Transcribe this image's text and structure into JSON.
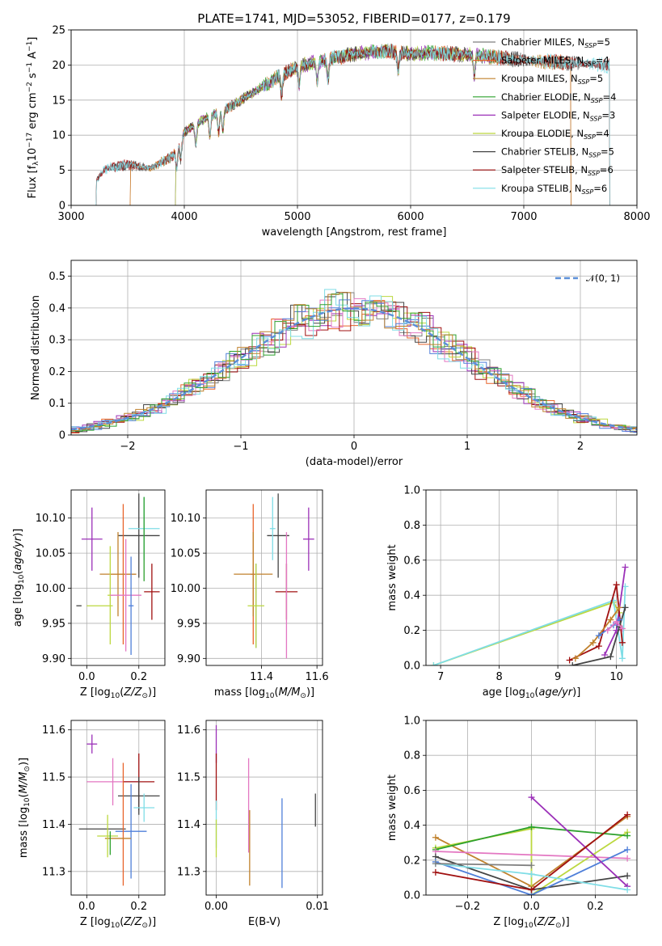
{
  "figure": {
    "title": "PLATE=1741, MJD=53052, FIBERID=0177, z=0.179"
  },
  "colors": {
    "Chabrier MILES": "#7f7f7f",
    "Salpeter MILES": "#e8632a",
    "Kroupa MILES": "#c0812c",
    "Chabrier ELODIE": "#2ca02c",
    "Salpeter ELODIE": "#9b30b8",
    "Kroupa ELODIE": "#bcd83f",
    "Chabrier STELIB": "#444444",
    "Salpeter STELIB": "#a01010",
    "Kroupa STELIB": "#7fdde6",
    "extra_pink": "#e377c2",
    "extra_blue": "#4f7fd9",
    "gauss": "#5b8fd8"
  },
  "chart_data": [
    {
      "id": "spectrum",
      "type": "line",
      "xlabel": "wavelength [Angstrom, rest frame]",
      "ylabel": "Flux [f_λ 10^-17 erg cm^-2 s^-1 A^-1]",
      "xlim": [
        3000,
        8000
      ],
      "ylim": [
        0,
        25
      ],
      "xticks": [
        3000,
        4000,
        5000,
        6000,
        7000,
        8000
      ],
      "yticks": [
        0,
        5,
        10,
        15,
        20,
        25
      ],
      "legend_position": "top-right",
      "legend": [
        {
          "name": "Chabrier MILES",
          "nssp": "5"
        },
        {
          "name": "Salpeter MILES",
          "nssp": "4"
        },
        {
          "name": "Kroupa MILES",
          "nssp": "5"
        },
        {
          "name": "Chabrier ELODIE",
          "nssp": "4"
        },
        {
          "name": "Salpeter ELODIE",
          "nssp": "3"
        },
        {
          "name": "Kroupa ELODIE",
          "nssp": "4"
        },
        {
          "name": "Chabrier STELIB",
          "nssp": "5"
        },
        {
          "name": "Salpeter STELIB",
          "nssp": "6"
        },
        {
          "name": "Kroupa STELIB",
          "nssp": "6"
        }
      ],
      "continuum": [
        [
          3220,
          3.5
        ],
        [
          3300,
          5.2
        ],
        [
          3500,
          5.8
        ],
        [
          3700,
          5.3
        ],
        [
          3900,
          7.0
        ],
        [
          4000,
          10.5
        ],
        [
          4200,
          12.5
        ],
        [
          4400,
          14.0
        ],
        [
          4600,
          16.0
        ],
        [
          4800,
          18.0
        ],
        [
          5000,
          19.8
        ],
        [
          5200,
          20.5
        ],
        [
          5400,
          21.3
        ],
        [
          5600,
          21.8
        ],
        [
          5800,
          22.0
        ],
        [
          6000,
          21.6
        ],
        [
          6200,
          21.7
        ],
        [
          6500,
          21.5
        ],
        [
          6800,
          21.0
        ],
        [
          7100,
          20.6
        ],
        [
          7400,
          20.3
        ],
        [
          7700,
          20.0
        ]
      ],
      "series_ranges": [
        {
          "name": "Chabrier MILES",
          "x": [
            3220,
            7420
          ]
        },
        {
          "name": "Salpeter MILES",
          "x": [
            3520,
            7420
          ]
        },
        {
          "name": "Kroupa MILES",
          "x": [
            3520,
            7420
          ]
        },
        {
          "name": "Chabrier ELODIE",
          "x": [
            3920,
            6790
          ]
        },
        {
          "name": "Salpeter ELODIE",
          "x": [
            3920,
            6790
          ]
        },
        {
          "name": "Kroupa ELODIE",
          "x": [
            3920,
            6790
          ]
        },
        {
          "name": "Chabrier STELIB",
          "x": [
            3220,
            7760
          ]
        },
        {
          "name": "Salpeter STELIB",
          "x": [
            3220,
            7760
          ]
        },
        {
          "name": "Kroupa STELIB",
          "x": [
            3220,
            7760
          ]
        }
      ]
    },
    {
      "id": "residuals",
      "type": "line",
      "xlabel": "(data-model)/error",
      "ylabel": "Normed distribution",
      "xlim": [
        -2.5,
        2.5
      ],
      "ylim": [
        0,
        0.55
      ],
      "xticks": [
        -2,
        -1,
        0,
        1,
        2
      ],
      "yticks": [
        0.0,
        0.1,
        0.2,
        0.3,
        0.4,
        0.5
      ],
      "legend": [
        "𝒩(0, 1)"
      ],
      "legend_position": "top-right",
      "bin_width": 0.1
    },
    {
      "id": "age_vs_Z",
      "type": "scatter",
      "xlabel": "Z [log10(Z/Z⊙)]",
      "ylabel": "age [log10(age/yr)]",
      "xlim": [
        -0.06,
        0.3
      ],
      "ylim": [
        9.89,
        10.14
      ],
      "xticks": [
        0.0,
        0.2
      ],
      "xticklabels": [
        "0.0",
        "0.2"
      ],
      "yticks": [
        9.9,
        9.95,
        10.0,
        10.05,
        10.1
      ],
      "yticklabels": [
        "9.90",
        "9.95",
        "10.00",
        "10.05",
        "10.10"
      ],
      "points": [
        {
          "c": "Salpeter ELODIE",
          "x": 0.02,
          "xe": 0.04,
          "y": 10.07,
          "ye": 0.045
        },
        {
          "c": "Chabrier STELIB",
          "x": 0.2,
          "xe": 0.08,
          "y": 10.075,
          "ye": 0.06
        },
        {
          "c": "Kroupa STELIB",
          "x": 0.22,
          "xe": 0.06,
          "y": 10.085,
          "ye": 0.045
        },
        {
          "c": "Chabrier ELODIE",
          "x": 0.22,
          "xe": 0.0,
          "y": 10.07,
          "ye": 0.06
        },
        {
          "c": "Salpeter MILES",
          "x": 0.14,
          "xe": 0.05,
          "y": 10.02,
          "ye": 0.1
        },
        {
          "c": "Kroupa MILES",
          "x": 0.12,
          "xe": 0.07,
          "y": 10.02,
          "ye": 0.06
        },
        {
          "c": "Kroupa ELODIE",
          "x": 0.09,
          "xe": 0.01,
          "y": 9.99,
          "ye": 0.07
        },
        {
          "c": "Salpeter STELIB",
          "x": 0.25,
          "xe": 0.03,
          "y": 9.995,
          "ye": 0.04
        },
        {
          "c": "extra_pink",
          "x": 0.15,
          "xe": 0.06,
          "y": 9.99,
          "ye": 0.08
        },
        {
          "c": "extra_blue",
          "x": 0.17,
          "xe": 0.01,
          "y": 9.975,
          "ye": 0.07
        },
        {
          "c": "Kroupa ELODIE",
          "x": 0.05,
          "xe": 0.05,
          "y": 9.975,
          "ye": 0.0
        },
        {
          "c": "Chabrier STELIB",
          "x": -0.03,
          "xe": 0.01,
          "y": 9.975,
          "ye": 0.0
        }
      ]
    },
    {
      "id": "age_vs_mass",
      "type": "scatter",
      "xlabel": "mass [log10(M/M⊙)]",
      "ylabel": "",
      "xlim": [
        11.2,
        11.62
      ],
      "ylim": [
        9.89,
        10.14
      ],
      "xticks": [
        11.4,
        11.6
      ],
      "xticklabels": [
        "11.4",
        "11.6"
      ],
      "yticks": [
        9.9,
        9.95,
        10.0,
        10.05,
        10.1
      ],
      "yticklabels": [
        "9.90",
        "9.95",
        "10.00",
        "10.05",
        "10.10"
      ],
      "points": [
        {
          "c": "Salpeter ELODIE",
          "x": 11.57,
          "xe": 0.02,
          "y": 10.07,
          "ye": 0.045
        },
        {
          "c": "Chabrier STELIB",
          "x": 11.46,
          "xe": 0.04,
          "y": 10.075,
          "ye": 0.06
        },
        {
          "c": "Kroupa STELIB",
          "x": 11.44,
          "xe": 0.01,
          "y": 10.085,
          "ye": 0.045
        },
        {
          "c": "Salpeter MILES",
          "x": 11.37,
          "xe": 0.01,
          "y": 10.02,
          "ye": 0.1
        },
        {
          "c": "Kroupa MILES",
          "x": 11.37,
          "xe": 0.07,
          "y": 10.02,
          "ye": 0.06
        },
        {
          "c": "Salpeter STELIB",
          "x": 11.49,
          "xe": 0.04,
          "y": 9.995,
          "ye": 0.04
        },
        {
          "c": "extra_pink",
          "x": 11.49,
          "xe": 0.0,
          "y": 9.99,
          "ye": 0.09
        },
        {
          "c": "extra_blue",
          "x": 11.38,
          "xe": 0.0,
          "y": 9.975,
          "ye": 0.06
        },
        {
          "c": "Kroupa ELODIE",
          "x": 11.38,
          "xe": 0.03,
          "y": 9.975,
          "ye": 0.06
        }
      ]
    },
    {
      "id": "massweight_vs_age",
      "type": "line",
      "xlabel": "age [log10(age/yr)]",
      "ylabel": "mass weight",
      "xlim": [
        6.75,
        10.35
      ],
      "ylim": [
        0,
        1.0
      ],
      "xticks": [
        7,
        8,
        9,
        10
      ],
      "yticks": [
        0.0,
        0.2,
        0.4,
        0.6,
        0.8,
        1.0
      ],
      "yticklabels": [
        "0.0",
        "0.2",
        "0.4",
        "0.6",
        "0.8",
        "1.0"
      ],
      "series": [
        {
          "c": "Kroupa ELODIE",
          "x": [
            6.88,
            9.95,
            10.05
          ],
          "y": [
            0.0,
            0.36,
            0.3
          ]
        },
        {
          "c": "Kroupa STELIB",
          "x": [
            6.88,
            9.95,
            10.1,
            10.15
          ],
          "y": [
            0.0,
            0.37,
            0.04,
            0.45
          ]
        },
        {
          "c": "Salpeter ELODIE",
          "x": [
            9.8,
            10.0,
            10.15
          ],
          "y": [
            0.06,
            0.2,
            0.56
          ]
        },
        {
          "c": "Salpeter STELIB",
          "x": [
            9.2,
            9.7,
            10.0,
            10.1
          ],
          "y": [
            0.03,
            0.11,
            0.46,
            0.13
          ]
        },
        {
          "c": "Kroupa MILES",
          "x": [
            9.3,
            9.6,
            9.9,
            10.05
          ],
          "y": [
            0.04,
            0.13,
            0.26,
            0.33
          ]
        },
        {
          "c": "Chabrier STELIB",
          "x": [
            9.25,
            9.9,
            10.05,
            10.15
          ],
          "y": [
            0.0,
            0.05,
            0.22,
            0.33
          ]
        },
        {
          "c": "extra_blue",
          "x": [
            9.7,
            9.95,
            10.05
          ],
          "y": [
            0.17,
            0.23,
            0.26
          ]
        },
        {
          "c": "extra_pink",
          "x": [
            9.85,
            10.0,
            10.1
          ],
          "y": [
            0.2,
            0.25,
            0.21
          ]
        }
      ]
    },
    {
      "id": "mass_vs_Z",
      "type": "scatter",
      "xlabel": "Z [log10(Z/Z⊙)]",
      "ylabel": "mass [log10(M/M⊙)]",
      "xlim": [
        -0.06,
        0.3
      ],
      "ylim": [
        11.25,
        11.62
      ],
      "xticks": [
        0.0,
        0.2
      ],
      "xticklabels": [
        "0.0",
        "0.2"
      ],
      "yticks": [
        11.3,
        11.4,
        11.5,
        11.6
      ],
      "yticklabels": [
        "11.3",
        "11.4",
        "11.5",
        "11.6"
      ],
      "points": [
        {
          "c": "Salpeter ELODIE",
          "x": 0.02,
          "xe": 0.02,
          "y": 11.57,
          "ye": 0.02
        },
        {
          "c": "extra_pink",
          "x": 0.1,
          "xe": 0.1,
          "y": 11.49,
          "ye": 0.05
        },
        {
          "c": "Salpeter STELIB",
          "x": 0.2,
          "xe": 0.06,
          "y": 11.49,
          "ye": 0.06
        },
        {
          "c": "Chabrier STELIB",
          "x": 0.2,
          "xe": 0.08,
          "y": 11.46,
          "ye": 0.04
        },
        {
          "c": "Kroupa STELIB",
          "x": 0.22,
          "xe": 0.04,
          "y": 11.435,
          "ye": 0.03
        },
        {
          "c": "extra_blue",
          "x": 0.17,
          "xe": 0.06,
          "y": 11.385,
          "ye": 0.1
        },
        {
          "c": "Chabrier STELIB",
          "x": 0.06,
          "xe": 0.09,
          "y": 11.39,
          "ye": 0.0
        },
        {
          "c": "Salpeter MILES",
          "x": 0.14,
          "xe": 0.0,
          "y": 11.4,
          "ye": 0.13
        },
        {
          "c": "Kroupa MILES",
          "x": 0.12,
          "xe": 0.05,
          "y": 11.37,
          "ye": 0.0
        },
        {
          "c": "Kroupa ELODIE",
          "x": 0.08,
          "xe": 0.04,
          "y": 11.375,
          "ye": 0.045
        },
        {
          "c": "Chabrier ELODIE",
          "x": 0.09,
          "xe": 0.0,
          "y": 11.36,
          "ye": 0.025
        }
      ]
    },
    {
      "id": "mass_vs_ebv",
      "type": "scatter",
      "xlabel": "E(B-V)",
      "ylabel": "",
      "xlim": [
        -0.001,
        0.0105
      ],
      "ylim": [
        11.25,
        11.62
      ],
      "xticks": [
        0.0,
        0.01
      ],
      "xticklabels": [
        "0.00",
        "0.01"
      ],
      "yticks": [
        11.3,
        11.4,
        11.5,
        11.6
      ],
      "yticklabels": [
        "11.3",
        "11.4",
        "11.5",
        "11.6"
      ],
      "points": [
        {
          "c": "Salpeter ELODIE",
          "x": 0.0,
          "xe": 0.0,
          "y": 11.57,
          "ye": 0.04
        },
        {
          "c": "Salpeter STELIB",
          "x": 0.0,
          "xe": 0.0,
          "y": 11.49,
          "ye": 0.06
        },
        {
          "c": "Kroupa STELIB",
          "x": 0.0,
          "xe": 0.0,
          "y": 11.4,
          "ye": 0.05
        },
        {
          "c": "Kroupa ELODIE",
          "x": 0.0,
          "xe": 0.0,
          "y": 11.37,
          "ye": 0.04
        },
        {
          "c": "extra_pink",
          "x": 0.0032,
          "xe": 0.0,
          "y": 11.44,
          "ye": 0.1
        },
        {
          "c": "Kroupa MILES",
          "x": 0.0033,
          "xe": 0.0,
          "y": 11.35,
          "ye": 0.08
        },
        {
          "c": "extra_blue",
          "x": 0.0065,
          "xe": 0.0,
          "y": 11.36,
          "ye": 0.095
        },
        {
          "c": "Chabrier STELIB",
          "x": 0.0098,
          "xe": 0.0,
          "y": 11.43,
          "ye": 0.035
        }
      ]
    },
    {
      "id": "massweight_vs_Z",
      "type": "line",
      "xlabel": "Z [log10(Z/Z⊙)]",
      "ylabel": "mass weight",
      "xlim": [
        -0.33,
        0.33
      ],
      "ylim": [
        0,
        1.0
      ],
      "xticks": [
        -0.2,
        0.0,
        0.2
      ],
      "xticklabels": [
        "−0.2",
        "0.0",
        "0.2"
      ],
      "yticks": [
        0.0,
        0.2,
        0.4,
        0.6,
        0.8,
        1.0
      ],
      "yticklabels": [
        "0.0",
        "0.2",
        "0.4",
        "0.6",
        "0.8",
        "1.0"
      ],
      "series": [
        {
          "c": "Kroupa MILES",
          "x": [
            -0.3,
            0.0,
            0.3
          ],
          "y": [
            0.33,
            0.05,
            0.45
          ]
        },
        {
          "c": "Kroupa ELODIE",
          "x": [
            -0.3,
            0.0,
            0.0,
            0.3
          ],
          "y": [
            0.27,
            0.38,
            0.0,
            0.36
          ]
        },
        {
          "c": "Chabrier ELODIE",
          "x": [
            -0.3,
            0.0,
            0.3
          ],
          "y": [
            0.26,
            0.39,
            0.34
          ]
        },
        {
          "c": "extra_pink",
          "x": [
            -0.3,
            0.3
          ],
          "y": [
            0.25,
            0.21
          ]
        },
        {
          "c": "Chabrier STELIB",
          "x": [
            -0.3,
            0.0,
            0.3
          ],
          "y": [
            0.22,
            0.03,
            0.11
          ]
        },
        {
          "c": "extra_blue",
          "x": [
            -0.3,
            0.0,
            0.3
          ],
          "y": [
            0.19,
            0.0,
            0.26
          ]
        },
        {
          "c": "Salpeter ELODIE",
          "x": [
            0.0,
            0.3
          ],
          "y": [
            0.56,
            0.05
          ]
        },
        {
          "c": "Salpeter STELIB",
          "x": [
            -0.3,
            0.0,
            0.3
          ],
          "y": [
            0.13,
            0.03,
            0.46
          ]
        },
        {
          "c": "Kroupa STELIB",
          "x": [
            -0.3,
            0.0,
            0.3
          ],
          "y": [
            0.18,
            0.12,
            0.03
          ]
        },
        {
          "c": "Chabrier MILES",
          "x": [
            -0.3,
            0.0
          ],
          "y": [
            0.18,
            0.17
          ]
        }
      ]
    }
  ]
}
